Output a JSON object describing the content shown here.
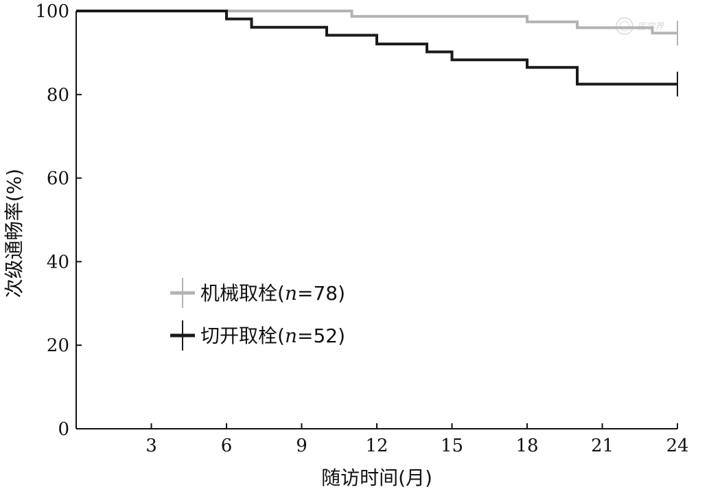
{
  "chart_data": {
    "type": "line",
    "step": true,
    "xlabel": "随访时间(月)",
    "ylabel": "次级通畅率(%)",
    "xlim": [
      0,
      24
    ],
    "ylim": [
      0,
      100
    ],
    "xticks": [
      3,
      6,
      9,
      12,
      15,
      18,
      21,
      24
    ],
    "yticks": [
      0,
      20,
      40,
      60,
      80,
      100
    ],
    "grid": false,
    "legend_position": "lower-left",
    "series": [
      {
        "name": "机械取栓",
        "n_label": "n",
        "n_value": "=78",
        "label_suffix": ")",
        "color": "#b3b3b3",
        "x": [
          0,
          11,
          18,
          20,
          23,
          24
        ],
        "y": [
          100,
          98.7,
          97.4,
          96.0,
          94.7,
          94.7
        ],
        "censor_x": [
          24
        ]
      },
      {
        "name": "切开取栓",
        "n_label": "n",
        "n_value": "=52",
        "label_suffix": ")",
        "color": "#1a1a1a",
        "x": [
          0,
          6,
          7,
          10,
          12,
          14,
          15,
          18,
          20,
          24
        ],
        "y": [
          100,
          98.1,
          96.1,
          94.2,
          92.1,
          90.2,
          88.3,
          86.5,
          82.5,
          82.5
        ],
        "censor_x": [
          24
        ]
      }
    ]
  },
  "watermark": {
    "text": "医学界",
    "icon": "seal-logo-icon"
  }
}
